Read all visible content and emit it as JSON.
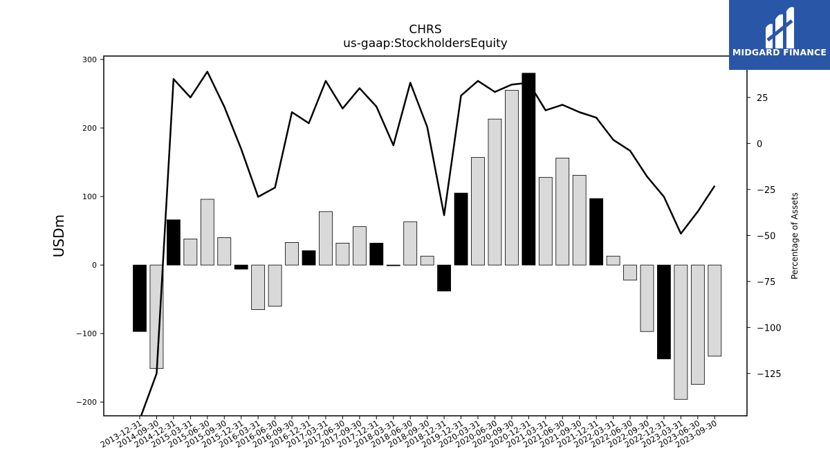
{
  "brand": {
    "name": "MIDGARD FINANCE",
    "color": "#2a56a8"
  },
  "chart_data": {
    "type": "bar",
    "title": "CHRS",
    "subtitle": "us-gaap:StockholdersEquity",
    "ylabel": "USDm",
    "y2label": "Percentage of Assets",
    "ylim": [
      -220,
      305
    ],
    "y2lim": [
      -148,
      47.5
    ],
    "yticks": [
      -200,
      -100,
      0,
      100,
      200,
      300
    ],
    "y2ticks": [
      -125,
      -100,
      -75,
      -50,
      -25,
      0,
      25
    ],
    "categories": [
      "2013-12-31",
      "2014-09-30",
      "2014-12-31",
      "2015-03-31",
      "2015-06-30",
      "2015-09-30",
      "2015-12-31",
      "2016-03-31",
      "2016-06-30",
      "2016-09-30",
      "2016-12-31",
      "2017-03-31",
      "2017-06-30",
      "2017-09-30",
      "2017-12-31",
      "2018-03-31",
      "2018-06-30",
      "2018-09-30",
      "2018-12-31",
      "2019-12-31",
      "2020-03-31",
      "2020-06-30",
      "2020-09-30",
      "2020-12-31",
      "2021-03-31",
      "2021-06-30",
      "2021-09-30",
      "2021-12-31",
      "2022-03-31",
      "2022-06-30",
      "2022-09-30",
      "2022-12-31",
      "2023-03-31",
      "2023-06-30",
      "2023-09-30"
    ],
    "series": [
      {
        "kind": "bar",
        "values": [
          -97,
          -151,
          66,
          38,
          96,
          40,
          -6,
          -65,
          -60,
          33,
          21,
          78,
          32,
          56,
          32,
          -1,
          63,
          13,
          -38,
          105,
          157,
          213,
          255,
          280,
          128,
          156,
          131,
          97,
          13,
          -22,
          -97,
          -137,
          -196,
          -174,
          -133
        ],
        "highlight": [
          true,
          false,
          true,
          false,
          false,
          false,
          true,
          false,
          false,
          false,
          true,
          false,
          false,
          false,
          true,
          true,
          false,
          false,
          true,
          true,
          false,
          false,
          false,
          true,
          false,
          false,
          false,
          true,
          false,
          false,
          false,
          true,
          false,
          false,
          false
        ]
      },
      {
        "kind": "line",
        "axis": "right",
        "values": [
          -150,
          -125,
          35,
          25,
          39,
          20,
          -3,
          -29,
          -24,
          17,
          11,
          34,
          19,
          30,
          20,
          -1,
          33,
          9,
          -39,
          26,
          34,
          28,
          32,
          33,
          18,
          21,
          17,
          14,
          2,
          -4,
          -18,
          -29,
          -49,
          -37,
          -23
        ]
      }
    ],
    "colors": {
      "highlight_bar": "#000000",
      "bar": "#d9d9d9",
      "bar_edge": "#000000",
      "line": "#000000"
    },
    "grid": false,
    "legend": "none"
  }
}
